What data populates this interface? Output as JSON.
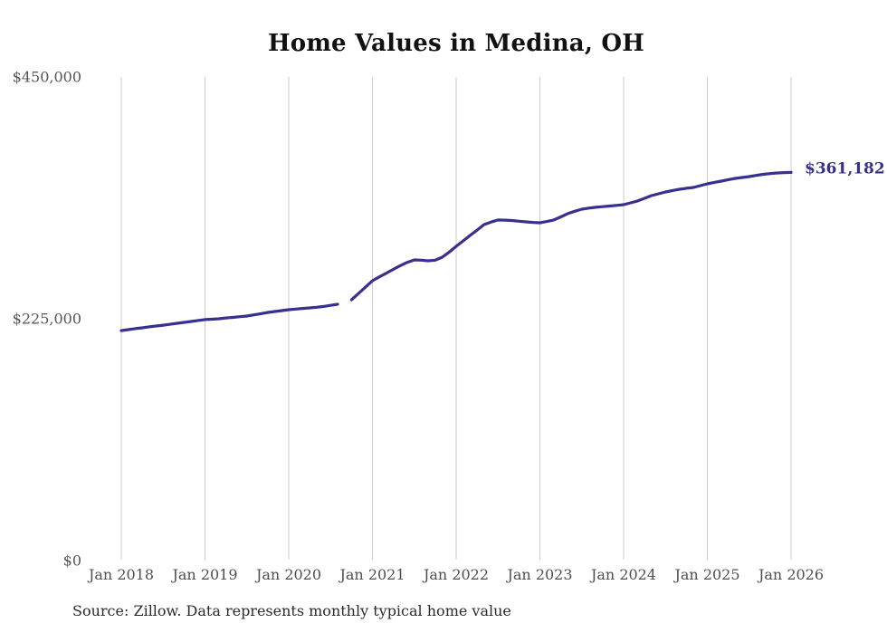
{
  "chart_data": {
    "type": "line",
    "title": "Home Values in Medina, OH",
    "source": "Source: Zillow. Data represents monthly typical home value",
    "end_label": "$361,182",
    "end_value": 361182,
    "xlabel": "",
    "ylabel": "",
    "ylim": [
      0,
      450000
    ],
    "grid": "vertical-only-at-january",
    "legend": "none",
    "colors": {
      "line": "#37308f",
      "end_label": "#37308f",
      "grid": "#cccccc",
      "axis_text": "#4f4f4f",
      "title_text": "#111111",
      "source_text": "#2b2b2b",
      "background": "#ffffff"
    },
    "y_ticks": [
      {
        "value": 450000,
        "label": "$450,000"
      },
      {
        "value": 225000,
        "label": "$225,000"
      },
      {
        "value": 0,
        "label": "$0"
      }
    ],
    "x_tick_labels": [
      "Jan 2018",
      "Jan 2019",
      "Jan 2020",
      "Jan 2021",
      "Jan 2022",
      "Jan 2023",
      "Jan 2024",
      "Jan 2025",
      "Jan 2026"
    ],
    "x_tick_month_index": [
      0,
      12,
      24,
      36,
      48,
      60,
      72,
      84,
      96
    ],
    "series": [
      {
        "name": "Monthly typical home value",
        "color": "#37308f",
        "start": "Jan 2018",
        "interval": "monthly",
        "gap_note": "missing data point Sep 2020 (rendered as line break)",
        "values": [
          214000,
          214900,
          215800,
          216600,
          217500,
          218300,
          219000,
          219900,
          220800,
          221600,
          222500,
          223400,
          224200,
          224600,
          225000,
          225800,
          226300,
          226900,
          227500,
          228600,
          229700,
          230900,
          231700,
          232600,
          233400,
          234000,
          234600,
          235100,
          235700,
          236500,
          237500,
          238500,
          null,
          242700,
          248500,
          254400,
          260400,
          264000,
          267500,
          271000,
          274500,
          277500,
          279800,
          279500,
          278900,
          279500,
          282300,
          287000,
          292400,
          297500,
          302500,
          307500,
          312600,
          315000,
          316900,
          316800,
          316400,
          315800,
          315200,
          314700,
          314300,
          315500,
          316900,
          319800,
          322800,
          325000,
          327000,
          328000,
          328700,
          329300,
          329900,
          330500,
          331200,
          332900,
          334600,
          337100,
          339600,
          341300,
          343000,
          344300,
          345500,
          346400,
          347200,
          348900,
          350600,
          351900,
          353100,
          354400,
          355600,
          356500,
          357300,
          358400,
          359400,
          360100,
          360700,
          361000,
          361182
        ]
      }
    ]
  }
}
